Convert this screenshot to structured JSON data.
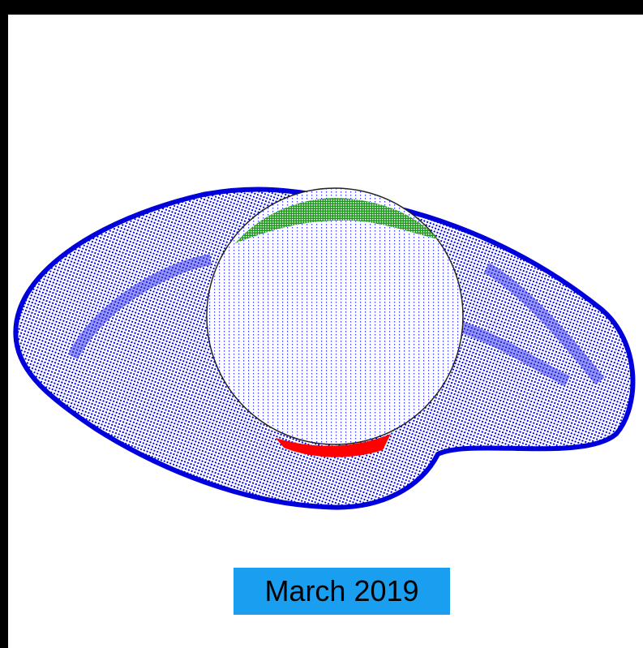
{
  "caption": "March 2019"
}
